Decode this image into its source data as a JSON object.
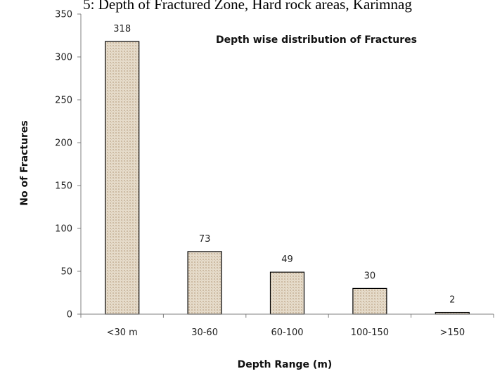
{
  "page_heading": "5: Depth of Fractured Zone, Hard rock areas, Karimnag",
  "chart_data": {
    "type": "bar",
    "title": "Depth wise distribution of Fractures",
    "xlabel": "Depth Range (m)",
    "ylabel": "No of  Fractures",
    "categories": [
      "<30 m",
      "30-60",
      "60-100",
      "100-150",
      ">150"
    ],
    "values": [
      318,
      73,
      49,
      30,
      2
    ],
    "data_labels": [
      "318",
      "73",
      "49",
      "30",
      "2"
    ],
    "ylim": [
      0,
      350
    ],
    "yticks": [
      0,
      50,
      100,
      150,
      200,
      250,
      300,
      350
    ],
    "grid": false,
    "legend": "none",
    "bar_fill": "#e2d6c4",
    "bar_stroke": "#000000"
  }
}
